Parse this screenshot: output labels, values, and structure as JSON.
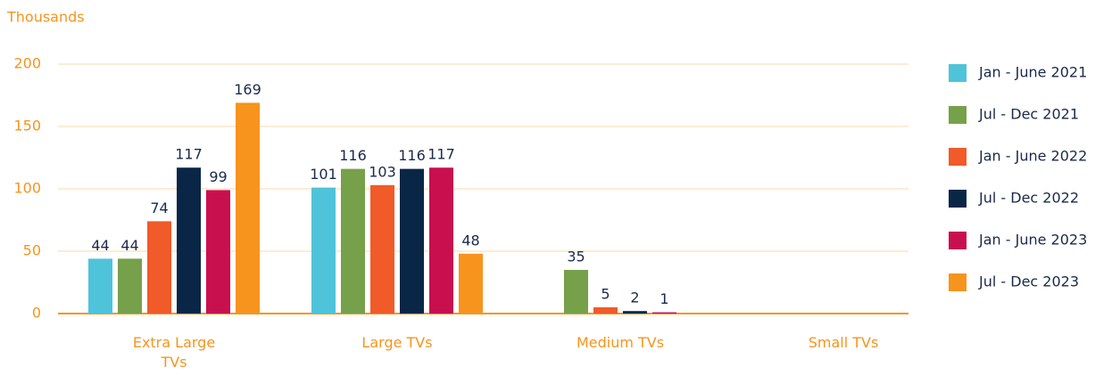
{
  "chart_data": {
    "type": "bar",
    "y_axis_label": "Thousands",
    "categories": [
      "Extra Large TVs",
      "Large TVs",
      "Medium TVs",
      "Small TVs"
    ],
    "series": [
      {
        "name": "Jan - June 2021",
        "color": "#4fc3d9",
        "values": [
          44,
          101,
          null,
          null
        ]
      },
      {
        "name": "Jul - Dec 2021",
        "color": "#76a04a",
        "values": [
          44,
          116,
          35,
          null
        ]
      },
      {
        "name": "Jan - June 2022",
        "color": "#f15a29",
        "values": [
          74,
          103,
          5,
          null
        ]
      },
      {
        "name": "Jul - Dec 2022",
        "color": "#0a2647",
        "values": [
          117,
          116,
          2,
          null
        ]
      },
      {
        "name": "Jan - June 2023",
        "color": "#c8104f",
        "values": [
          99,
          117,
          1,
          null
        ]
      },
      {
        "name": "Jul - Dec 2023",
        "color": "#f7941d",
        "values": [
          169,
          48,
          null,
          null
        ]
      }
    ],
    "ylim": [
      0,
      200
    ],
    "yticks": [
      0,
      50,
      100,
      150,
      200
    ],
    "grid": true,
    "legend": "right"
  }
}
